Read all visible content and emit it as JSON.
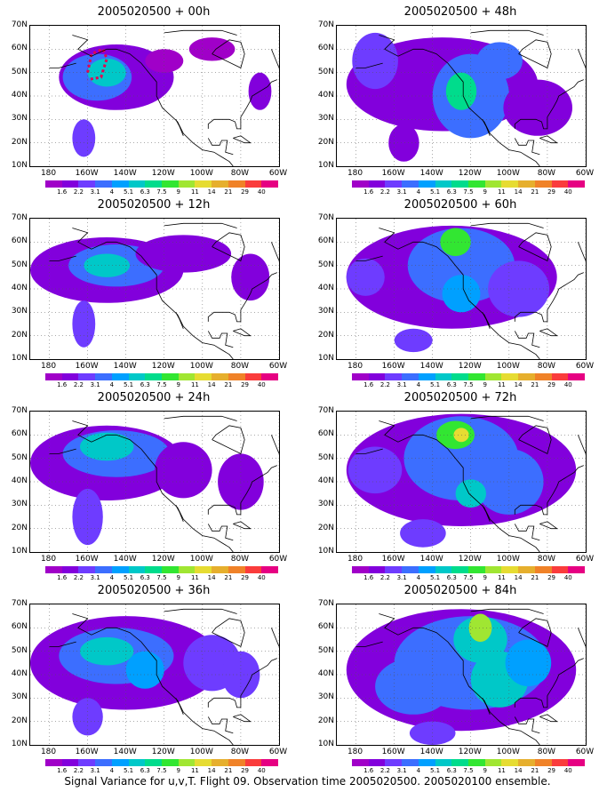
{
  "panels": [
    {
      "title": "2005020500 + 00h"
    },
    {
      "title": "2005020500 + 48h"
    },
    {
      "title": "2005020500 + 12h"
    },
    {
      "title": "2005020500 + 60h"
    },
    {
      "title": "2005020500 + 24h"
    },
    {
      "title": "2005020500 + 72h"
    },
    {
      "title": "2005020500 + 36h"
    },
    {
      "title": "2005020500 + 84h"
    }
  ],
  "y_ticks": [
    "70N",
    "60N",
    "50N",
    "40N",
    "30N",
    "20N",
    "10N"
  ],
  "x_ticks": [
    "180",
    "160W",
    "140W",
    "120W",
    "100W",
    "80W",
    "60W"
  ],
  "colorbar": {
    "labels": [
      "1.6",
      "2.2",
      "3.1",
      "4",
      "5.1",
      "6.3",
      "7.5",
      "9",
      "11",
      "14",
      "21",
      "29",
      "40"
    ],
    "colors": [
      "#a000c8",
      "#8200dc",
      "#6e3cff",
      "#3c6eff",
      "#00a0ff",
      "#00c8c8",
      "#00dc8c",
      "#32e632",
      "#a0e632",
      "#e6dc32",
      "#e6af2d",
      "#f08228",
      "#fa3c3c",
      "#e60082"
    ]
  },
  "caption": "Signal Variance for u,v,T. Flight 09. Observation time 2005020500. 2005020100 ensemble."
}
